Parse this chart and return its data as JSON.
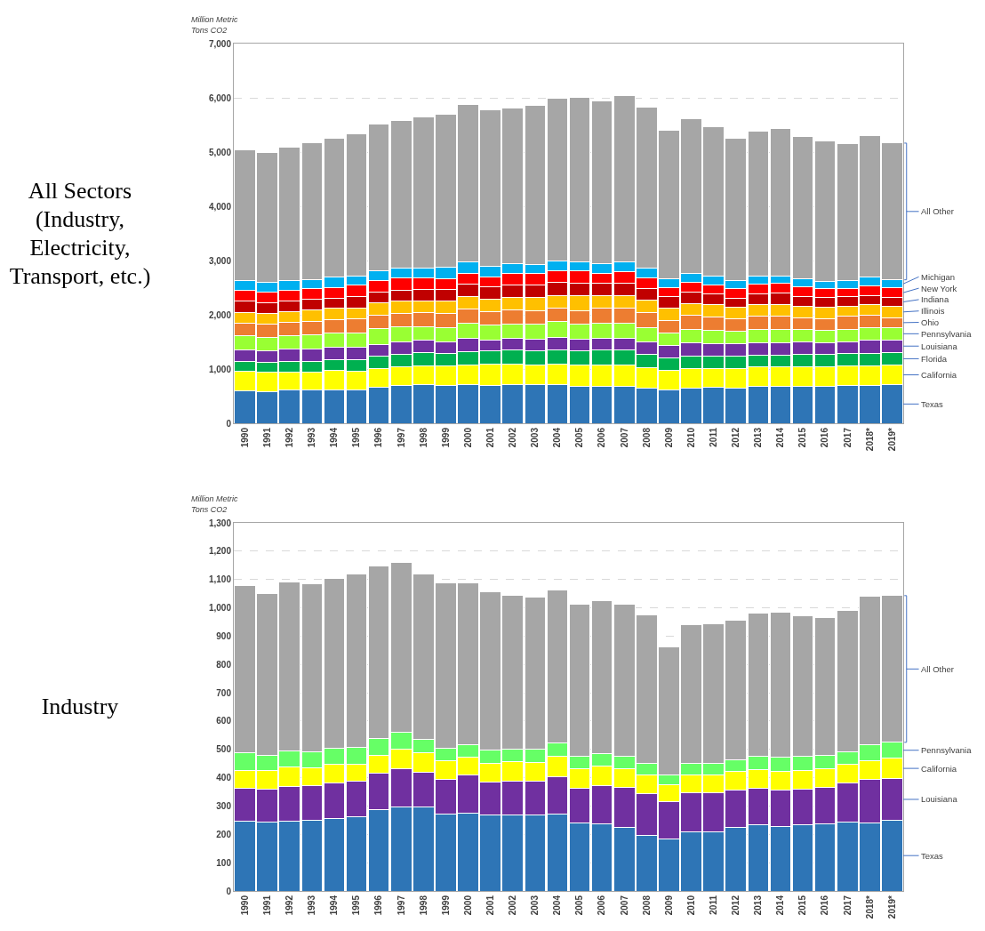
{
  "chart_data": [
    {
      "type": "bar",
      "title": "All Sectors (Industry, Electricity, Transport, etc.)",
      "ylabel": "Million Metric Tons CO2",
      "stacked": true,
      "grid": "y",
      "ylim": [
        0,
        7000
      ],
      "yticks": [
        0,
        {
          "value": 1000,
          "label": "1,000"
        },
        {
          "value": 2000,
          "label": "2,000"
        },
        {
          "value": 3000,
          "label": "3,000"
        },
        {
          "value": 4000,
          "label": "4,000"
        },
        {
          "value": 5000,
          "label": "5,000"
        },
        {
          "value": 6000,
          "label": "6,000"
        },
        {
          "value": 7000,
          "label": "7,000"
        }
      ],
      "categories": [
        "1990",
        "1991",
        "1992",
        "1993",
        "1994",
        "1995",
        "1996",
        "1997",
        "1998",
        "1999",
        "2000",
        "2001",
        "2002",
        "2003",
        "2004",
        "2005",
        "2006",
        "2007",
        "2008",
        "2009",
        "2010",
        "2011",
        "2012",
        "2013",
        "2014",
        "2015",
        "2016",
        "2017",
        "2018*",
        "2019*"
      ],
      "series": [
        {
          "name": "Texas",
          "color": "#2e75b6",
          "values": [
            600,
            590,
            610,
            615,
            615,
            615,
            670,
            700,
            710,
            700,
            710,
            700,
            710,
            710,
            710,
            685,
            685,
            685,
            640,
            610,
            640,
            665,
            655,
            685,
            685,
            685,
            685,
            700,
            695,
            710
          ]
        },
        {
          "name": "California",
          "color": "#ffff00",
          "values": [
            365,
            345,
            340,
            335,
            365,
            350,
            345,
            345,
            345,
            355,
            370,
            385,
            385,
            360,
            385,
            390,
            390,
            390,
            390,
            370,
            370,
            345,
            355,
            355,
            355,
            355,
            355,
            350,
            365,
            365
          ]
        },
        {
          "name": "Florida",
          "color": "#00b050",
          "values": [
            175,
            195,
            190,
            195,
            190,
            210,
            220,
            225,
            255,
            230,
            240,
            245,
            250,
            260,
            260,
            260,
            270,
            270,
            235,
            230,
            235,
            220,
            220,
            220,
            220,
            230,
            230,
            235,
            235,
            230
          ]
        },
        {
          "name": "Louisiana",
          "color": "#7030a0",
          "values": [
            210,
            210,
            225,
            220,
            235,
            220,
            220,
            230,
            220,
            220,
            240,
            210,
            215,
            225,
            230,
            210,
            215,
            220,
            240,
            220,
            240,
            245,
            230,
            230,
            230,
            235,
            220,
            220,
            235,
            235
          ]
        },
        {
          "name": "Pennsylvania",
          "color": "#99ff33",
          "values": [
            265,
            250,
            250,
            270,
            255,
            270,
            285,
            275,
            255,
            265,
            280,
            265,
            270,
            265,
            285,
            290,
            285,
            280,
            265,
            235,
            250,
            245,
            235,
            235,
            235,
            220,
            220,
            230,
            230,
            220
          ]
        },
        {
          "name": "Ohio",
          "color": "#ed7d31",
          "values": [
            230,
            245,
            250,
            245,
            245,
            255,
            250,
            245,
            260,
            250,
            265,
            250,
            260,
            260,
            250,
            245,
            275,
            275,
            265,
            235,
            250,
            245,
            230,
            245,
            245,
            220,
            220,
            235,
            225,
            190
          ]
        },
        {
          "name": "Illinois",
          "color": "#ffc000",
          "values": [
            195,
            195,
            195,
            215,
            215,
            210,
            225,
            240,
            215,
            240,
            225,
            225,
            230,
            235,
            235,
            275,
            240,
            240,
            235,
            220,
            220,
            220,
            210,
            220,
            220,
            215,
            210,
            190,
            200,
            205
          ]
        },
        {
          "name": "Indiana",
          "color": "#c00000",
          "values": [
            215,
            195,
            195,
            190,
            185,
            200,
            200,
            195,
            215,
            200,
            235,
            235,
            225,
            235,
            240,
            230,
            220,
            220,
            220,
            210,
            220,
            205,
            175,
            195,
            205,
            180,
            180,
            175,
            165,
            165
          ]
        },
        {
          "name": "New York",
          "color": "#ff0000",
          "values": [
            195,
            190,
            195,
            195,
            195,
            215,
            210,
            220,
            210,
            205,
            200,
            185,
            210,
            210,
            220,
            220,
            185,
            210,
            195,
            170,
            170,
            160,
            175,
            185,
            185,
            180,
            160,
            155,
            190,
            175
          ]
        },
        {
          "name": "Michigan",
          "color": "#00b0f0",
          "values": [
            180,
            185,
            180,
            175,
            190,
            175,
            190,
            190,
            180,
            220,
            215,
            195,
            185,
            170,
            180,
            170,
            185,
            190,
            180,
            160,
            160,
            165,
            140,
            140,
            140,
            145,
            135,
            135,
            160,
            150
          ]
        },
        {
          "name": "All Other",
          "color": "#a6a6a6",
          "values": [
            2410,
            2400,
            2455,
            2525,
            2560,
            2610,
            2700,
            2725,
            2780,
            2815,
            2890,
            2880,
            2875,
            2930,
            2990,
            3030,
            2990,
            3055,
            2955,
            2745,
            2860,
            2750,
            2635,
            2675,
            2710,
            2625,
            2585,
            2525,
            2600,
            2520
          ]
        }
      ]
    },
    {
      "type": "bar",
      "title": "Industry",
      "ylabel": "Million Metric Tons CO2",
      "stacked": true,
      "grid": "y",
      "ylim": [
        0,
        1300
      ],
      "yticks": [
        0,
        100,
        200,
        300,
        400,
        500,
        600,
        700,
        800,
        900,
        {
          "value": 1000,
          "label": "1,000"
        },
        {
          "value": 1100,
          "label": "1,100"
        },
        {
          "value": 1200,
          "label": "1,200"
        },
        {
          "value": 1300,
          "label": "1,300"
        }
      ],
      "categories": [
        "1990",
        "1991",
        "1992",
        "1993",
        "1994",
        "1995",
        "1996",
        "1997",
        "1998",
        "1999",
        "2000",
        "2001",
        "2002",
        "2003",
        "2004",
        "2005",
        "2006",
        "2007",
        "2008",
        "2009",
        "2010",
        "2011",
        "2012",
        "2013",
        "2014",
        "2015",
        "2016",
        "2017",
        "2018*",
        "2019*"
      ],
      "series": [
        {
          "name": "Texas",
          "color": "#2e75b6",
          "values": [
            245,
            242,
            248,
            250,
            257,
            261,
            287,
            298,
            298,
            273,
            276,
            270,
            268,
            268,
            273,
            239,
            237,
            224,
            197,
            183,
            209,
            209,
            224,
            234,
            229,
            234,
            237,
            242,
            239,
            250
          ]
        },
        {
          "name": "Louisiana",
          "color": "#7030a0",
          "values": [
            118,
            116,
            121,
            121,
            126,
            127,
            129,
            134,
            121,
            122,
            133,
            115,
            120,
            120,
            131,
            125,
            134,
            142,
            147,
            133,
            137,
            137,
            133,
            129,
            127,
            127,
            129,
            138,
            155,
            147
          ]
        },
        {
          "name": "California",
          "color": "#ffff00",
          "values": [
            64,
            66,
            68,
            64,
            63,
            61,
            64,
            69,
            68,
            65,
            65,
            67,
            69,
            66,
            73,
            68,
            69,
            66,
            66,
            60,
            65,
            65,
            65,
            66,
            66,
            66,
            66,
            66,
            66,
            72
          ]
        },
        {
          "name": "Pennsylvania",
          "color": "#66ff66",
          "values": [
            60,
            56,
            59,
            58,
            57,
            58,
            58,
            58,
            47,
            43,
            44,
            46,
            44,
            47,
            46,
            45,
            45,
            45,
            42,
            35,
            41,
            41,
            40,
            48,
            52,
            50,
            48,
            47,
            57,
            56
          ]
        },
        {
          "name": "All Other",
          "color": "#a6a6a6",
          "values": [
            591,
            571,
            594,
            591,
            600,
            611,
            611,
            602,
            584,
            585,
            570,
            560,
            542,
            537,
            540,
            537,
            539,
            537,
            523,
            451,
            490,
            492,
            495,
            505,
            511,
            495,
            487,
            497,
            524,
            518
          ]
        }
      ]
    }
  ]
}
